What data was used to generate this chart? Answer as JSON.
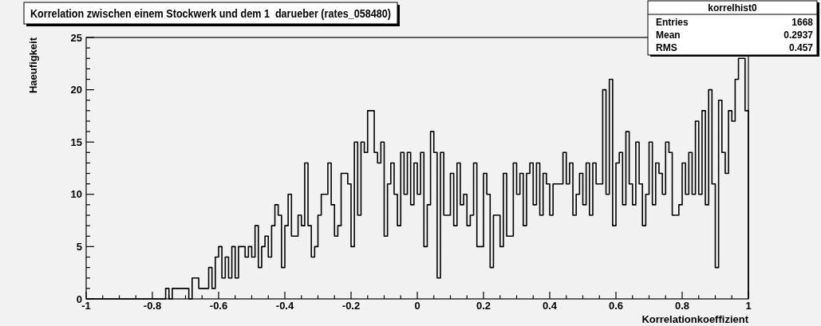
{
  "chart_data": {
    "type": "histogram",
    "title": "Korrelation zwischen einem Stockwerk und dem 1  darueber (rates_058480)",
    "xlabel": "Korrelationkoeffizient",
    "ylabel": "Haeufigkeit",
    "color": "#000000",
    "grid": false,
    "bins": [
      -1,
      -0.99,
      -0.98,
      -0.97,
      -0.96,
      -0.95,
      -0.94,
      -0.93,
      -0.92,
      -0.91,
      -0.9,
      -0.89,
      -0.88,
      -0.87,
      -0.86,
      -0.85,
      -0.84,
      -0.83,
      -0.82,
      -0.81,
      -0.8,
      -0.79,
      -0.78,
      -0.77,
      -0.76,
      -0.75,
      -0.74,
      -0.73,
      -0.72,
      -0.71,
      -0.7,
      -0.69,
      -0.68,
      -0.67,
      -0.66,
      -0.65,
      -0.64,
      -0.63,
      -0.62,
      -0.61,
      -0.6,
      -0.59,
      -0.58,
      -0.57,
      -0.56,
      -0.55,
      -0.54,
      -0.53,
      -0.52,
      -0.51,
      -0.5,
      -0.49,
      -0.48,
      -0.47,
      -0.46,
      -0.45,
      -0.44,
      -0.43,
      -0.42,
      -0.41,
      -0.4,
      -0.39,
      -0.38,
      -0.37,
      -0.36,
      -0.35,
      -0.34,
      -0.33,
      -0.32,
      -0.31,
      -0.3,
      -0.29,
      -0.28,
      -0.27,
      -0.26,
      -0.25,
      -0.24,
      -0.23,
      -0.22,
      -0.21,
      -0.2,
      -0.19,
      -0.18,
      -0.17,
      -0.16,
      -0.15,
      -0.14,
      -0.13,
      -0.12,
      -0.11,
      -0.1,
      -0.09,
      -0.08,
      -0.07,
      -0.06,
      -0.05,
      -0.04,
      -0.03,
      -0.02,
      -0.01,
      0,
      0.01,
      0.02,
      0.03,
      0.04,
      0.05,
      0.06,
      0.07,
      0.08,
      0.09,
      0.1,
      0.11,
      0.12,
      0.13,
      0.14,
      0.15,
      0.16,
      0.17,
      0.18,
      0.19,
      0.2,
      0.21,
      0.22,
      0.23,
      0.24,
      0.25,
      0.26,
      0.27,
      0.28,
      0.29,
      0.3,
      0.31,
      0.32,
      0.33,
      0.34,
      0.35,
      0.36,
      0.37,
      0.38,
      0.39,
      0.4,
      0.41,
      0.42,
      0.43,
      0.44,
      0.45,
      0.46,
      0.47,
      0.48,
      0.49,
      0.5,
      0.51,
      0.52,
      0.53,
      0.54,
      0.55,
      0.56,
      0.57,
      0.58,
      0.59,
      0.6,
      0.61,
      0.62,
      0.63,
      0.64,
      0.65,
      0.66,
      0.67,
      0.68,
      0.69,
      0.7,
      0.71,
      0.72,
      0.73,
      0.74,
      0.75,
      0.76,
      0.77,
      0.78,
      0.79,
      0.8,
      0.81,
      0.82,
      0.83,
      0.84,
      0.85,
      0.86,
      0.87,
      0.88,
      0.89,
      0.9,
      0.91,
      0.92,
      0.93,
      0.94,
      0.95,
      0.96,
      0.97,
      0.98,
      0.99,
      1
    ],
    "values": [
      0,
      0,
      0,
      0,
      0,
      0,
      0,
      0,
      0,
      0,
      0,
      0,
      0,
      0,
      0,
      0,
      0,
      0,
      0,
      0,
      0,
      0,
      0,
      0,
      1,
      0,
      1,
      1,
      1,
      1,
      1,
      0,
      2,
      2,
      1,
      1,
      1,
      3,
      1,
      4,
      5,
      2,
      4,
      2,
      5,
      2,
      5,
      5,
      4,
      5,
      4,
      7,
      3,
      5,
      6,
      4,
      7,
      9,
      8,
      3,
      7,
      10,
      6,
      6,
      8,
      7,
      13,
      7,
      4,
      5,
      8,
      10,
      10,
      13,
      9,
      6,
      7,
      12,
      12,
      11,
      5,
      15,
      8,
      15,
      14,
      18,
      18,
      14,
      13,
      15,
      6,
      11,
      13,
      10,
      7,
      14,
      10,
      14,
      9,
      13,
      10,
      14,
      5,
      9,
      16,
      14,
      2,
      14,
      8,
      8,
      12,
      7,
      13,
      9,
      10,
      7,
      8,
      13,
      5,
      5,
      12,
      10,
      3,
      8,
      8,
      5,
      12,
      6,
      6,
      13,
      10,
      12,
      7,
      12,
      13,
      9,
      13,
      8,
      12,
      11,
      8,
      11,
      11,
      11,
      14,
      11,
      13,
      8,
      10,
      12,
      9,
      13,
      8,
      13,
      11,
      11,
      20,
      10,
      21,
      7,
      13,
      14,
      9,
      16,
      11,
      9,
      15,
      11,
      7,
      10,
      15,
      9,
      13,
      12,
      10,
      15,
      14,
      8,
      8,
      9,
      13,
      10,
      14,
      10,
      17,
      10,
      18,
      9,
      20,
      11,
      3,
      19,
      14,
      12,
      18,
      17,
      21,
      23,
      23,
      18
    ],
    "xlim": [
      -1,
      1
    ],
    "ylim": [
      0,
      25
    ],
    "xticks": [
      -1,
      {
        "value": -0.95,
        "label": null
      },
      {
        "value": -0.9,
        "label": null
      },
      {
        "value": -0.85,
        "label": null
      },
      -0.8,
      {
        "value": -0.75,
        "label": null
      },
      {
        "value": -0.7,
        "label": null
      },
      {
        "value": -0.65,
        "label": null
      },
      -0.6,
      {
        "value": -0.55,
        "label": null
      },
      {
        "value": -0.5,
        "label": null
      },
      {
        "value": -0.45,
        "label": null
      },
      -0.4,
      {
        "value": -0.35,
        "label": null
      },
      {
        "value": -0.3,
        "label": null
      },
      {
        "value": -0.25,
        "label": null
      },
      -0.2,
      {
        "value": -0.15,
        "label": null
      },
      {
        "value": -0.1,
        "label": null
      },
      {
        "value": -0.05,
        "label": null
      },
      0,
      {
        "value": 0.05,
        "label": null
      },
      {
        "value": 0.1,
        "label": null
      },
      {
        "value": 0.15,
        "label": null
      },
      0.2,
      {
        "value": 0.25,
        "label": null
      },
      {
        "value": 0.3,
        "label": null
      },
      {
        "value": 0.35,
        "label": null
      },
      0.4,
      {
        "value": 0.45,
        "label": null
      },
      {
        "value": 0.5,
        "label": null
      },
      {
        "value": 0.55,
        "label": null
      },
      0.6,
      {
        "value": 0.65,
        "label": null
      },
      {
        "value": 0.7,
        "label": null
      },
      {
        "value": 0.75,
        "label": null
      },
      0.8,
      {
        "value": 0.85,
        "label": null
      },
      {
        "value": 0.9,
        "label": null
      },
      {
        "value": 0.95,
        "label": null
      },
      1
    ],
    "yticks": [
      0,
      {
        "value": 1,
        "label": null
      },
      {
        "value": 2,
        "label": null
      },
      {
        "value": 3,
        "label": null
      },
      {
        "value": 4,
        "label": null
      },
      5,
      {
        "value": 6,
        "label": null
      },
      {
        "value": 7,
        "label": null
      },
      {
        "value": 8,
        "label": null
      },
      {
        "value": 9,
        "label": null
      },
      10,
      {
        "value": 11,
        "label": null
      },
      {
        "value": 12,
        "label": null
      },
      {
        "value": 13,
        "label": null
      },
      {
        "value": 14,
        "label": null
      },
      15,
      {
        "value": 16,
        "label": null
      },
      {
        "value": 17,
        "label": null
      },
      {
        "value": 18,
        "label": null
      },
      {
        "value": 19,
        "label": null
      },
      20,
      {
        "value": 21,
        "label": null
      },
      {
        "value": 22,
        "label": null
      },
      {
        "value": 23,
        "label": null
      },
      {
        "value": 24,
        "label": null
      },
      25
    ],
    "annotations": [
      "korrelhist0",
      "Entries",
      "1668",
      "Mean",
      "0.2937",
      "RMS",
      "0.457"
    ]
  }
}
